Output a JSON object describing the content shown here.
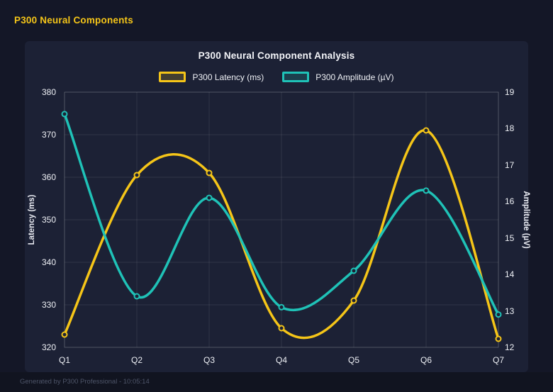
{
  "header": {
    "title": "P300 Neural Components"
  },
  "footer": {
    "text": "Generated by P300 Professional - 10:05:14"
  },
  "colors": {
    "accent_yellow": "#f5c518",
    "accent_teal": "#1fc2b7",
    "background": "#141727",
    "card": "#1c2135"
  },
  "chart_data": {
    "type": "line",
    "title": "P300 Neural Component Analysis",
    "categories": [
      "Q1",
      "Q2",
      "Q3",
      "Q4",
      "Q5",
      "Q6",
      "Q7"
    ],
    "series": [
      {
        "name": "P300 Latency (ms)",
        "axis": "left",
        "color": "#f5c518",
        "values": [
          323,
          360.5,
          361,
          324.5,
          331,
          371,
          322
        ]
      },
      {
        "name": "P300 Amplitude (µV)",
        "axis": "right",
        "color": "#1fc2b7",
        "values": [
          18.4,
          13.4,
          16.1,
          13.1,
          14.1,
          16.3,
          12.9
        ]
      }
    ],
    "left_axis": {
      "label": "Latency (ms)",
      "min": 320,
      "max": 380,
      "ticks": [
        380,
        370,
        360,
        350,
        340,
        330,
        320
      ]
    },
    "right_axis": {
      "label": "Amplitude (µV)",
      "min": 12,
      "max": 19,
      "ticks": [
        19,
        18,
        17,
        16,
        15,
        14,
        13,
        12
      ]
    },
    "grid": true,
    "smooth": true,
    "legend_position": "top"
  }
}
